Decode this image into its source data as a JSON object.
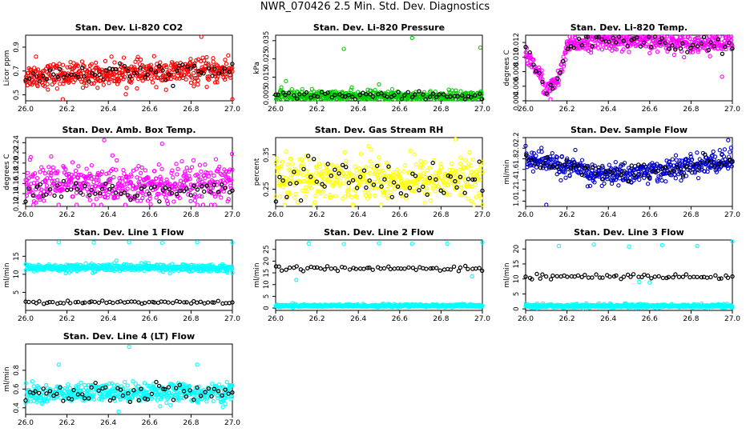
{
  "title": "NWR_070426  2.5 Min. Std. Dev. Diagnostics",
  "chart_data": [
    {
      "type": "scatter",
      "title": "Stan. Dev. Li-820 CO2",
      "ylabel": "Licor ppm",
      "xlabel": "",
      "xlim": [
        26.0,
        27.0
      ],
      "ylim": [
        0.45,
        1.0
      ],
      "xticks": [
        "26.0",
        "26.2",
        "26.4",
        "26.6",
        "26.8",
        "27.0"
      ],
      "yticks": [
        "0.5",
        "0.7",
        "0.9"
      ],
      "color": "#ff0000",
      "base": [
        [
          0.0,
          0.66
        ],
        [
          0.5,
          0.68
        ],
        [
          1.0,
          0.7
        ]
      ],
      "spread": 0.05,
      "minor_offset": 0.0,
      "minor_spread": 0.04,
      "outliers": [
        [
          26.85,
          0.99
        ],
        [
          26.18,
          0.46
        ],
        [
          27.0,
          0.46
        ],
        [
          26.05,
          0.82
        ],
        [
          26.98,
          0.83
        ]
      ],
      "grid": false
    },
    {
      "type": "scatter",
      "title": "Stan. Dev. Li-820 Pressure",
      "ylabel": "kPa",
      "xlabel": "",
      "xlim": [
        26.0,
        27.0
      ],
      "ylim": [
        0.002,
        0.038
      ],
      "xticks": [
        "26.0",
        "26.2",
        "26.4",
        "26.6",
        "26.8",
        "27.0"
      ],
      "yticks": [
        "0.005",
        "0.015",
        "0.025",
        "0.035"
      ],
      "color": "#00cc00",
      "base": [
        [
          0.0,
          0.0048
        ],
        [
          0.5,
          0.0045
        ],
        [
          1.0,
          0.0045
        ]
      ],
      "spread": 0.0015,
      "minor_offset": 0.0,
      "minor_spread": 0.0012,
      "outliers": [
        [
          26.33,
          0.0305
        ],
        [
          26.66,
          0.0365
        ],
        [
          26.99,
          0.0312
        ],
        [
          26.05,
          0.0128
        ],
        [
          26.5,
          0.011
        ]
      ],
      "grid": false
    },
    {
      "type": "scatter",
      "title": "Stan. Dev. Li-820 Temp.",
      "ylabel": "degrees C",
      "xlabel": "",
      "xlim": [
        26.0,
        27.0
      ],
      "ylim": [
        0.004,
        0.013
      ],
      "xticks": [
        "26.0",
        "26.2",
        "26.4",
        "26.6",
        "26.8",
        "27.0"
      ],
      "yticks": [
        "0.004",
        "0.006",
        "0.008",
        "0.010",
        "0.012"
      ],
      "color": "#ff00ff",
      "base": [
        [
          0.0,
          0.0105
        ],
        [
          0.06,
          0.008
        ],
        [
          0.1,
          0.0055
        ],
        [
          0.14,
          0.0062
        ],
        [
          0.18,
          0.0085
        ],
        [
          0.2,
          0.0115
        ],
        [
          0.3,
          0.0122
        ],
        [
          0.6,
          0.0121
        ],
        [
          1.0,
          0.0118
        ]
      ],
      "spread": 0.0006,
      "minor_offset": 0.0,
      "minor_spread": 0.0006,
      "outliers": [
        [
          26.12,
          0.0042
        ],
        [
          26.95,
          0.0073
        ]
      ],
      "grid": false
    },
    {
      "type": "scatter",
      "title": "Stan. Dev. Amb. Box Temp.",
      "ylabel": "degrees C",
      "xlabel": "",
      "xlim": [
        26.0,
        27.0
      ],
      "ylim": [
        0.115,
        0.25
      ],
      "xticks": [
        "26.0",
        "26.2",
        "26.4",
        "26.6",
        "26.8",
        "27.0"
      ],
      "yticks": [
        "0.12",
        "0.14",
        "0.16",
        "0.18",
        "0.20",
        "0.22",
        "0.24"
      ],
      "color": "#ff00ff",
      "base": [
        [
          0.0,
          0.16
        ],
        [
          0.5,
          0.155
        ],
        [
          1.0,
          0.155
        ]
      ],
      "spread": 0.02,
      "minor_offset": -0.01,
      "minor_spread": 0.012,
      "outliers": [
        [
          26.38,
          0.245
        ],
        [
          26.66,
          0.238
        ],
        [
          26.42,
          0.215
        ]
      ],
      "grid": false
    },
    {
      "type": "scatter",
      "title": "Stan. Dev. Gas Stream RH",
      "ylabel": "percent",
      "xlabel": "",
      "xlim": [
        26.0,
        27.0
      ],
      "ylim": [
        0.2,
        0.4
      ],
      "xticks": [
        "26.0",
        "26.2",
        "26.4",
        "26.6",
        "26.8",
        "27.0"
      ],
      "yticks": [
        "0.25",
        "0.35"
      ],
      "color": "#ffff00",
      "base": [
        [
          0.0,
          0.285
        ],
        [
          0.5,
          0.28
        ],
        [
          1.0,
          0.278
        ]
      ],
      "spread": 0.03,
      "minor_offset": 0.0,
      "minor_spread": 0.03,
      "outliers": [
        [
          26.87,
          0.395
        ],
        [
          26.45,
          0.375
        ]
      ],
      "grid": false
    },
    {
      "type": "scatter",
      "title": "Stan. Dev. Sample Flow",
      "ylabel": "ml/min",
      "xlabel": "",
      "xlim": [
        26.0,
        27.0
      ],
      "ylim": [
        0.9,
        2.2
      ],
      "xticks": [
        "26.0",
        "26.2",
        "26.4",
        "26.6",
        "26.8",
        "27.0"
      ],
      "yticks": [
        "1.0",
        "1.2",
        "1.4",
        "1.6",
        "1.8",
        "2.0",
        "2.2"
      ],
      "color": "#0000cc",
      "base": [
        [
          0.0,
          1.8
        ],
        [
          0.2,
          1.65
        ],
        [
          0.35,
          1.5
        ],
        [
          0.5,
          1.52
        ],
        [
          0.7,
          1.6
        ],
        [
          1.0,
          1.78
        ]
      ],
      "spread": 0.1,
      "minor_offset": 0.0,
      "minor_spread": 0.08,
      "outliers": [
        [
          26.1,
          0.93
        ],
        [
          26.98,
          2.15
        ],
        [
          26.3,
          1.28
        ]
      ],
      "grid": false
    },
    {
      "type": "scatter",
      "title": "Stan. Dev. Line 1 Flow",
      "ylabel": "ml/min",
      "xlabel": "",
      "xlim": [
        26.0,
        27.0
      ],
      "ylim": [
        0.0,
        19.5
      ],
      "xticks": [
        "26.0",
        "26.2",
        "26.4",
        "26.6",
        "26.8",
        "27.0"
      ],
      "yticks": [
        "5",
        "10",
        "15"
      ],
      "color": "#00ffff",
      "base": [
        [
          0.0,
          11.8
        ],
        [
          0.5,
          11.9
        ],
        [
          1.0,
          11.7
        ]
      ],
      "spread": 0.5,
      "minor_offset": -9.6,
      "minor_spread": 0.2,
      "outliers": [
        [
          26.16,
          18.9
        ],
        [
          26.33,
          18.8
        ],
        [
          26.5,
          18.9
        ],
        [
          26.66,
          18.7
        ],
        [
          26.83,
          18.9
        ],
        [
          27.0,
          18.8
        ]
      ],
      "grid": false
    },
    {
      "type": "scatter",
      "title": "Stan. Dev. Line 2 Flow",
      "ylabel": "ml/min",
      "xlabel": "",
      "xlim": [
        26.0,
        27.0
      ],
      "ylim": [
        -1.0,
        29.0
      ],
      "xticks": [
        "26.0",
        "26.2",
        "26.4",
        "26.6",
        "26.8",
        "27.0"
      ],
      "yticks": [
        "0",
        "5",
        "10",
        "15",
        "20",
        "25"
      ],
      "color": "#00ffff",
      "base": [
        [
          0.0,
          1.0
        ],
        [
          1.0,
          1.0
        ]
      ],
      "spread": 0.3,
      "minor_offset": 15.8,
      "minor_spread": 0.5,
      "outliers": [
        [
          26.16,
          27.5
        ],
        [
          26.33,
          27.3
        ],
        [
          26.5,
          27.6
        ],
        [
          26.66,
          27.4
        ],
        [
          26.83,
          27.5
        ],
        [
          27.0,
          28.0
        ],
        [
          26.1,
          12.0
        ],
        [
          26.95,
          13.5
        ]
      ],
      "grid": false
    },
    {
      "type": "scatter",
      "title": "Stan. Dev. Line 3 Flow",
      "ylabel": "ml/min",
      "xlabel": "",
      "xlim": [
        26.0,
        27.0
      ],
      "ylim": [
        -0.5,
        23.0
      ],
      "xticks": [
        "26.0",
        "26.2",
        "26.4",
        "26.6",
        "26.8",
        "27.0"
      ],
      "yticks": [
        "0",
        "5",
        "10",
        "15",
        "20"
      ],
      "color": "#00ffff",
      "base": [
        [
          0.0,
          1.0
        ],
        [
          1.0,
          1.0
        ]
      ],
      "spread": 0.3,
      "minor_offset": 9.8,
      "minor_spread": 0.4,
      "outliers": [
        [
          26.16,
          21.0
        ],
        [
          26.33,
          21.5
        ],
        [
          26.5,
          20.8
        ],
        [
          26.66,
          21.3
        ],
        [
          26.83,
          21.0
        ],
        [
          27.0,
          22.5
        ],
        [
          26.55,
          9.0
        ],
        [
          26.6,
          8.8
        ]
      ],
      "grid": false
    },
    {
      "type": "scatter",
      "title": "Stan. Dev. Line 4 (LT) Flow",
      "ylabel": "ml/min",
      "xlabel": "",
      "xlim": [
        26.0,
        27.0
      ],
      "ylim": [
        0.33,
        1.08
      ],
      "xticks": [
        "26.0",
        "26.2",
        "26.4",
        "26.6",
        "26.8",
        "27.0"
      ],
      "yticks": [
        "0.4",
        "0.6",
        "0.8"
      ],
      "color": "#00ffff",
      "base": [
        [
          0.0,
          0.54
        ],
        [
          0.5,
          0.57
        ],
        [
          1.0,
          0.55
        ]
      ],
      "spread": 0.05,
      "minor_offset": 0.0,
      "minor_spread": 0.05,
      "outliers": [
        [
          26.16,
          0.86
        ],
        [
          26.5,
          1.05
        ],
        [
          26.83,
          0.86
        ],
        [
          26.45,
          0.36
        ]
      ],
      "grid": false
    }
  ]
}
